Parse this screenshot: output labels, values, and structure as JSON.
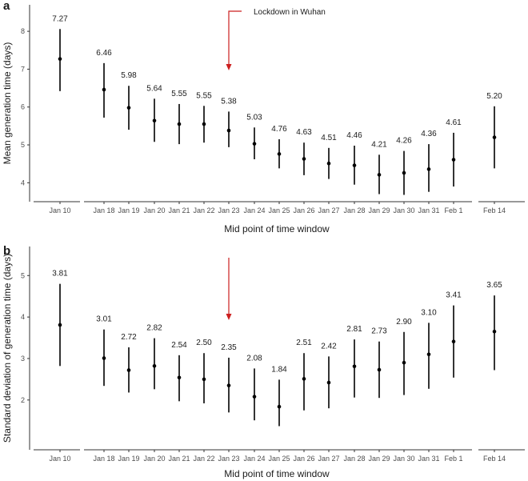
{
  "chart_data": [
    {
      "type": "scatter",
      "panel": "a",
      "x_categories": [
        "Jan 10",
        "Jan 18",
        "Jan 19",
        "Jan 20",
        "Jan 21",
        "Jan 22",
        "Jan 23",
        "Jan 24",
        "Jan 25",
        "Jan 26",
        "Jan 27",
        "Jan 28",
        "Jan 29",
        "Jan 30",
        "Jan 31",
        "Feb 1",
        "Feb 14"
      ],
      "values": [
        7.27,
        6.46,
        5.98,
        5.64,
        5.55,
        5.55,
        5.38,
        5.03,
        4.76,
        4.63,
        4.51,
        4.46,
        4.21,
        4.26,
        4.36,
        4.61,
        5.2
      ],
      "value_labels": [
        "7.27",
        "6.46",
        "5.98",
        "5.64",
        "5.55",
        "5.55",
        "5.38",
        "5.03",
        "4.76",
        "4.63",
        "4.51",
        "4.46",
        "4.21",
        "4.26",
        "4.36",
        "4.61",
        "5.20"
      ],
      "lower": [
        6.42,
        5.72,
        5.4,
        5.08,
        5.02,
        5.06,
        4.94,
        4.62,
        4.38,
        4.2,
        4.1,
        3.95,
        3.7,
        3.68,
        3.76,
        3.9,
        4.38
      ],
      "upper": [
        8.06,
        7.16,
        6.56,
        6.22,
        6.08,
        6.03,
        5.88,
        5.46,
        5.15,
        5.06,
        4.92,
        4.98,
        4.74,
        4.84,
        5.02,
        5.32,
        6.02
      ],
      "xlabel": "Mid point of time window",
      "ylabel": "Mean generation time (days)",
      "yticks": [
        4,
        5,
        6,
        7,
        8
      ],
      "ylim": [
        3.5,
        8.7
      ],
      "annotation": {
        "text": "Lockdown in Wuhan",
        "at": "Jan 23"
      }
    },
    {
      "type": "scatter",
      "panel": "b",
      "x_categories": [
        "Jan 10",
        "Jan 18",
        "Jan 19",
        "Jan 20",
        "Jan 21",
        "Jan 22",
        "Jan 23",
        "Jan 24",
        "Jan 25",
        "Jan 26",
        "Jan 27",
        "Jan 28",
        "Jan 29",
        "Jan 30",
        "Jan 31",
        "Feb 1",
        "Feb 14"
      ],
      "values": [
        3.81,
        3.01,
        2.72,
        2.82,
        2.54,
        2.5,
        2.35,
        2.08,
        1.84,
        2.51,
        2.42,
        2.81,
        2.73,
        2.9,
        3.1,
        3.41,
        3.65
      ],
      "value_labels": [
        "3.81",
        "3.01",
        "2.72",
        "2.82",
        "2.54",
        "2.50",
        "2.35",
        "2.08",
        "1.84",
        "2.51",
        "2.42",
        "2.81",
        "2.73",
        "2.90",
        "3.10",
        "3.41",
        "3.65"
      ],
      "lower": [
        2.82,
        2.34,
        2.18,
        2.26,
        1.97,
        1.92,
        1.7,
        1.51,
        1.37,
        1.75,
        1.8,
        2.06,
        2.05,
        2.12,
        2.27,
        2.54,
        2.72
      ],
      "upper": [
        4.8,
        3.7,
        3.27,
        3.49,
        3.08,
        3.13,
        3.02,
        2.76,
        2.49,
        3.13,
        3.05,
        3.46,
        3.41,
        3.64,
        3.86,
        4.28,
        4.52
      ],
      "xlabel": "Mid point of time window",
      "ylabel": "Standard deviation of generation time (days)",
      "yticks": [
        2,
        3,
        4,
        5
      ],
      "ylim": [
        0.8,
        5.7
      ],
      "annotation": {
        "text": "",
        "at": "Jan 23"
      }
    }
  ],
  "colors": {
    "point": "#000000",
    "annotation_arrow": "#cc1f1f",
    "axis": "#333333"
  }
}
